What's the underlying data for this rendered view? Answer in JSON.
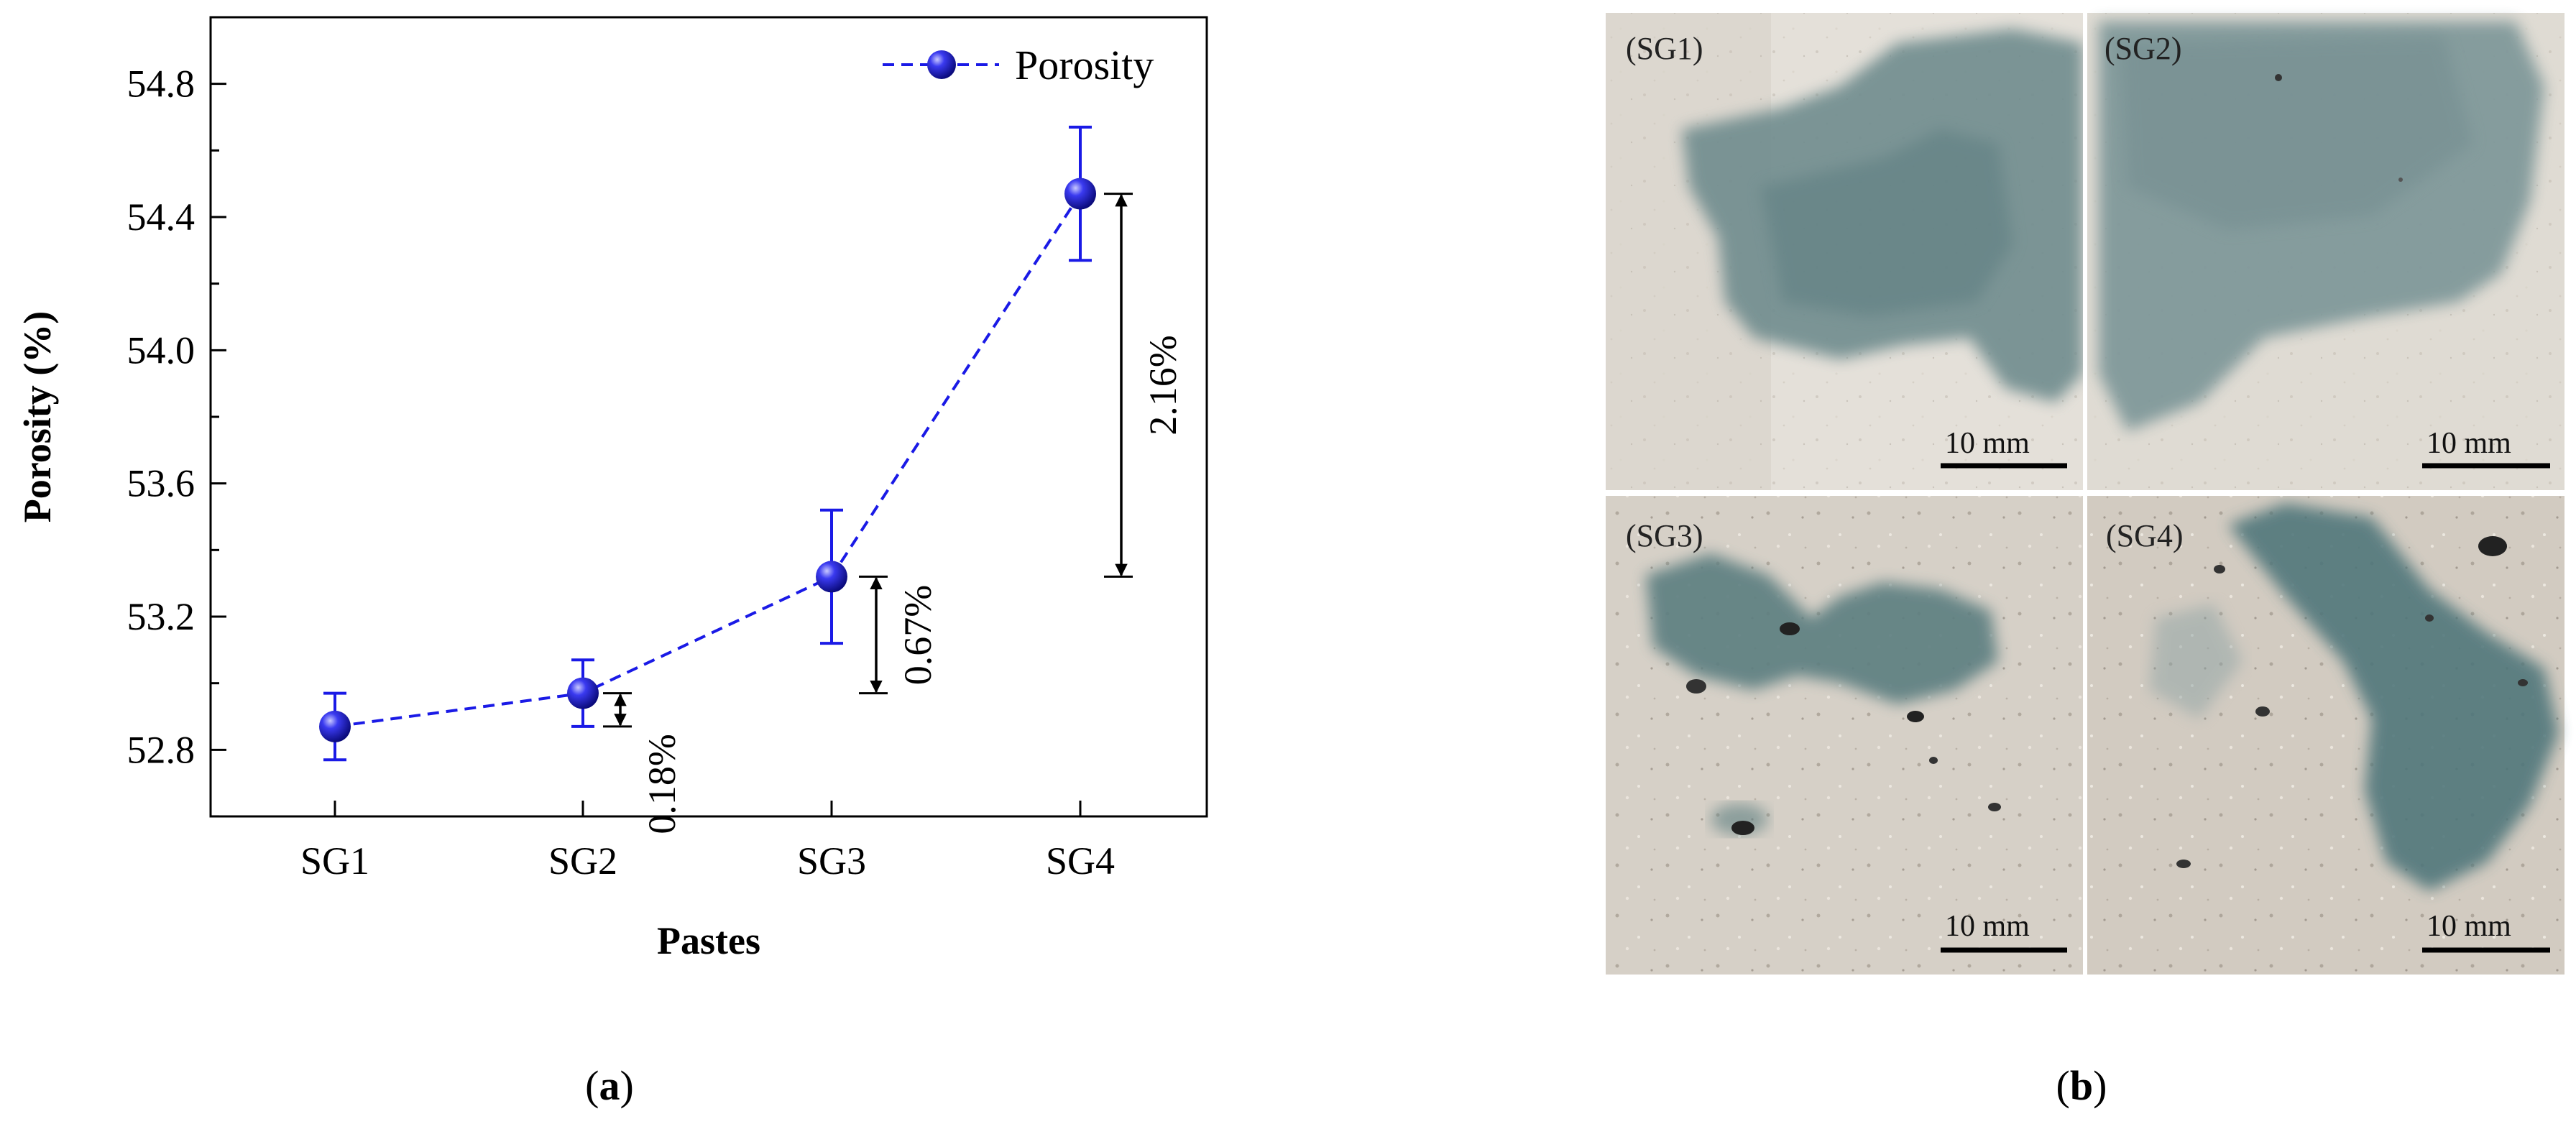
{
  "panel_a": {
    "caption": "(a)",
    "chart_data": {
      "type": "line",
      "title": "",
      "xlabel": "Pastes",
      "ylabel": "Porosity (%)",
      "categories": [
        "SG1",
        "SG2",
        "SG3",
        "SG4"
      ],
      "ylim": [
        52.6,
        55.0
      ],
      "yticks": [
        "52.8",
        "53.2",
        "53.6",
        "54.0",
        "54.4",
        "54.8"
      ],
      "series": [
        {
          "name": "Porosity",
          "values": [
            52.87,
            52.97,
            53.32,
            54.47
          ],
          "error": [
            0.1,
            0.1,
            0.2,
            0.2
          ],
          "color": "#1a1ae6",
          "line_style": "dashed",
          "marker": "sphere"
        }
      ],
      "legend": {
        "label": "Porosity",
        "placement": "top-right"
      },
      "annotations": [
        {
          "label": "0.18%",
          "from": 52.87,
          "to": 52.97,
          "at_category": "SG2"
        },
        {
          "label": "0.67%",
          "from": 52.97,
          "to": 53.32,
          "at_category": "SG3"
        },
        {
          "label": "2.16%",
          "from": 53.32,
          "to": 54.47,
          "at_category": "SG4"
        }
      ],
      "grid": false
    }
  },
  "panel_b": {
    "caption": "(b)",
    "tiles": [
      {
        "label": "(SG1)",
        "scale_label": "10 mm"
      },
      {
        "label": "(SG2)",
        "scale_label": "10 mm"
      },
      {
        "label": "(SG3)",
        "scale_label": "10 mm"
      },
      {
        "label": "(SG4)",
        "scale_label": "10 mm"
      }
    ]
  }
}
